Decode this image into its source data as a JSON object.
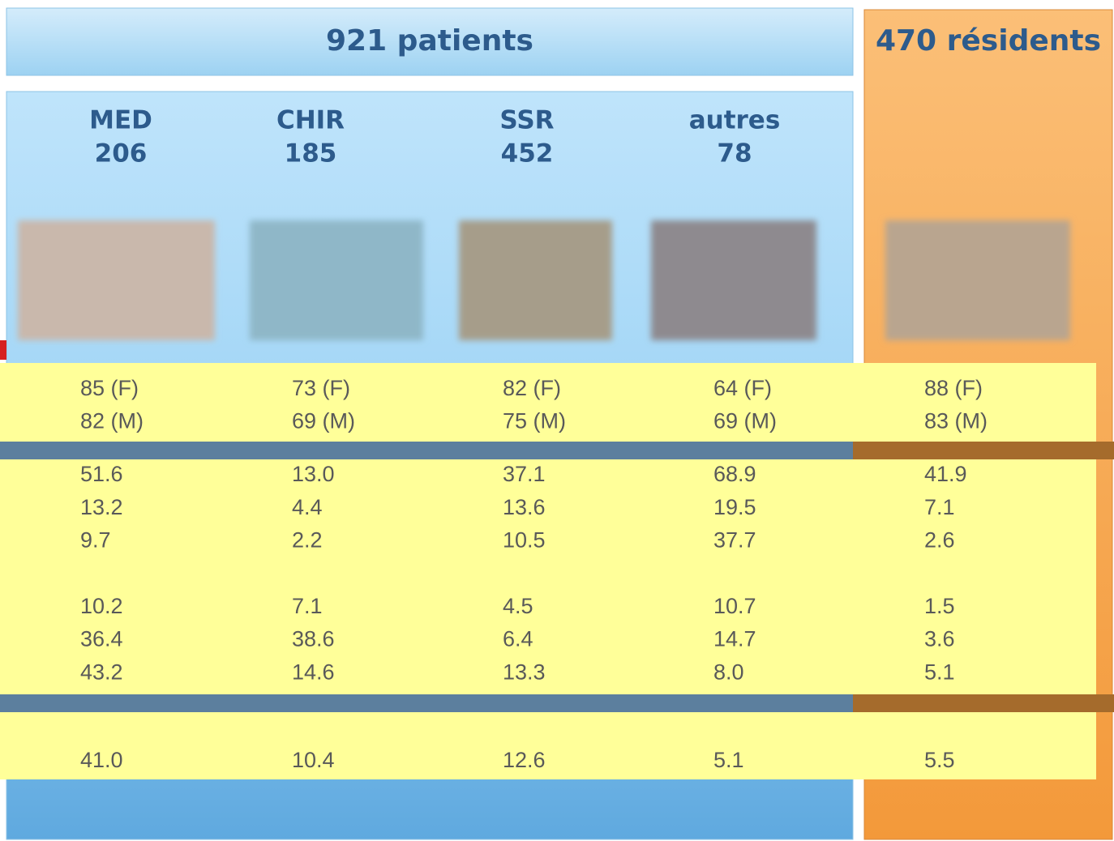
{
  "header": {
    "patients": "921 patients",
    "residents": "470 résidents"
  },
  "columns": [
    {
      "label": "MED",
      "count": "206"
    },
    {
      "label": "CHIR",
      "count": "185"
    },
    {
      "label": "SSR",
      "count": "452"
    },
    {
      "label": "autres",
      "count": "78"
    }
  ],
  "bands": [
    {
      "rows": [
        [
          "85 (F)",
          "73 (F)",
          "82 (F)",
          "64 (F)",
          "88 (F)"
        ],
        [
          "82 (M)",
          "69 (M)",
          "75 (M)",
          "69 (M)",
          "83 (M)"
        ]
      ]
    },
    {
      "rows": [
        [
          "51.6",
          "13.0",
          "37.1",
          "68.9",
          "41.9"
        ],
        [
          "13.2",
          "4.4",
          "13.6",
          "19.5",
          "7.1"
        ],
        [
          "9.7",
          "2.2",
          "10.5",
          "37.7",
          "2.6"
        ],
        [
          "10.2",
          "7.1",
          "4.5",
          "10.7",
          "1.5"
        ],
        [
          "36.4",
          "38.6",
          "6.4",
          "14.7",
          "3.6"
        ],
        [
          "43.2",
          "14.6",
          "13.3",
          "8.0",
          "5.1"
        ]
      ]
    },
    {
      "rows": [
        [
          "41.0",
          "10.4",
          "12.6",
          "5.1",
          "5.5"
        ]
      ]
    }
  ]
}
